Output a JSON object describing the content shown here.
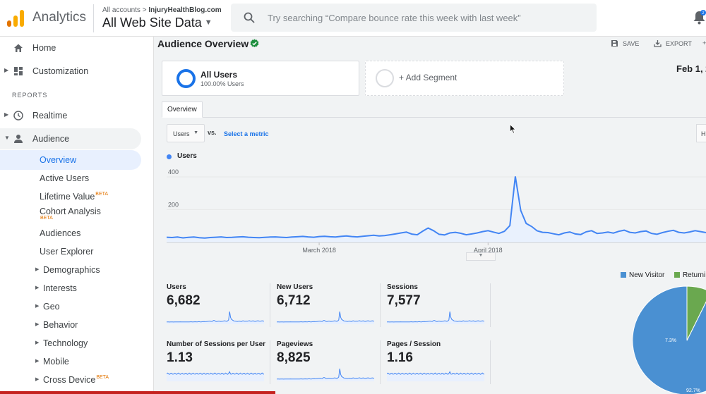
{
  "app": {
    "name": "Analytics"
  },
  "account": {
    "crumb_prefix": "All accounts",
    "crumb_separator": ">",
    "crumb_site": "InjuryHealthBlog.com",
    "view_name": "All Web Site Data"
  },
  "search": {
    "placeholder": "Try searching “Compare bounce rate this week with last week”"
  },
  "notifications": {
    "count": "2"
  },
  "sidebar": {
    "home": "Home",
    "customization": "Customization",
    "reports_header": "REPORTS",
    "realtime": "Realtime",
    "audience": "Audience",
    "audience_items": {
      "overview": "Overview",
      "active_users": "Active Users",
      "lifetime_value": "Lifetime Value",
      "cohort_analysis": "Cohort Analysis",
      "audiences": "Audiences",
      "user_explorer": "User Explorer",
      "demographics": "Demographics",
      "interests": "Interests",
      "geo": "Geo",
      "behavior": "Behavior",
      "technology": "Technology",
      "mobile": "Mobile",
      "cross_device": "Cross Device"
    },
    "beta": "BETA"
  },
  "page": {
    "title": "Audience Overview",
    "save": "SAVE",
    "export": "EXPORT",
    "date_range": "Feb 1, 2",
    "segments": {
      "all_users": "All Users",
      "all_users_pct": "100.00% Users",
      "add_segment": "+ Add Segment"
    },
    "tab_overview": "Overview",
    "metric_select": "Users",
    "vs": "vs.",
    "select_metric": "Select a metric",
    "h_button": "H"
  },
  "chart_data": {
    "type": "line",
    "series": [
      {
        "name": "Users",
        "color": "#4285f4",
        "values": [
          32,
          30,
          33,
          28,
          31,
          33,
          29,
          27,
          30,
          32,
          34,
          30,
          31,
          33,
          35,
          32,
          30,
          29,
          31,
          33,
          34,
          32,
          30,
          33,
          35,
          37,
          34,
          32,
          36,
          38,
          35,
          33,
          37,
          40,
          36,
          34,
          38,
          41,
          44,
          40,
          42,
          47,
          52,
          58,
          63,
          51,
          47,
          69,
          88,
          72,
          50,
          46,
          58,
          62,
          56,
          47,
          52,
          58,
          66,
          72,
          63,
          55,
          68,
          103,
          403,
          195,
          116,
          97,
          71,
          62,
          60,
          53,
          47,
          58,
          64,
          52,
          48,
          65,
          72,
          55,
          58,
          63,
          57,
          68,
          75,
          62,
          58,
          66,
          70,
          55,
          50,
          60,
          68,
          74,
          62,
          58,
          64,
          72,
          66,
          60
        ]
      }
    ],
    "x_labels": [
      "March 2018",
      "April 2018"
    ],
    "x_label_positions": [
      28,
      59
    ],
    "y_ticks": [
      400,
      200
    ],
    "ylim": [
      0,
      460
    ]
  },
  "metrics": [
    {
      "name": "Users",
      "value": "6,682"
    },
    {
      "name": "New Users",
      "value": "6,712"
    },
    {
      "name": "Sessions",
      "value": "7,577"
    },
    {
      "name": "Number of Sessions per User",
      "value": "1.13"
    },
    {
      "name": "Pageviews",
      "value": "8,825"
    },
    {
      "name": "Pages / Session",
      "value": "1.16"
    }
  ],
  "pie": {
    "legend": [
      {
        "label": "New Visitor",
        "color": "#4a90d2"
      },
      {
        "label": "Returni",
        "color": "#6aa84f"
      }
    ],
    "slices": [
      {
        "label": "New Visitor",
        "value": 92.7,
        "display": "92.7%",
        "color": "#4a90d2"
      },
      {
        "label": "Returning Visitor",
        "value": 7.3,
        "display": "7.3%",
        "color": "#6aa84f"
      }
    ]
  }
}
